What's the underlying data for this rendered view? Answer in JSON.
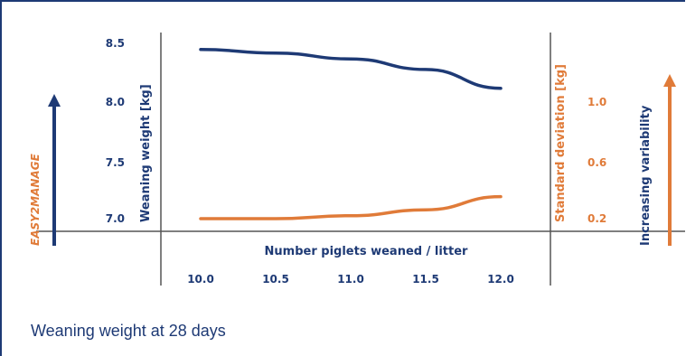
{
  "caption": "Weaning weight at 28 days",
  "colors": {
    "frame": "#1e3a75",
    "primary": "#1e3a75",
    "secondary": "#e07b39",
    "axis": "#555555"
  },
  "chart_data": {
    "type": "line",
    "title": "",
    "xlabel": "Number piglets weaned / litter",
    "ylabel": "Weaning weight [kg]",
    "y2label": "Standard deviation [kg]",
    "x_ticks": [
      "10.0",
      "10.5",
      "11.0",
      "11.5",
      "12.0"
    ],
    "y_ticks": [
      "7.0",
      "7.5",
      "8.0",
      "8.5"
    ],
    "y2_ticks": [
      "0.2",
      "0.6",
      "1.0"
    ],
    "xlim": [
      10.0,
      12.0
    ],
    "ylim": [
      7.0,
      8.5
    ],
    "y2lim": [
      0.2,
      1.0
    ],
    "left_arrow_label": "EASY2MANAGE",
    "right_arrow_label": "Increasing variability",
    "grid": false,
    "series": [
      {
        "axis": "left",
        "color": "#1e3a75",
        "x": [
          10.0,
          10.5,
          11.0,
          11.5,
          12.0
        ],
        "values": [
          8.44,
          8.41,
          8.36,
          8.27,
          8.11
        ]
      },
      {
        "axis": "right",
        "color": "#e07b39",
        "x": [
          10.0,
          10.5,
          11.0,
          11.5,
          12.0
        ],
        "values": [
          0.2,
          0.2,
          0.22,
          0.26,
          0.35
        ]
      }
    ]
  }
}
